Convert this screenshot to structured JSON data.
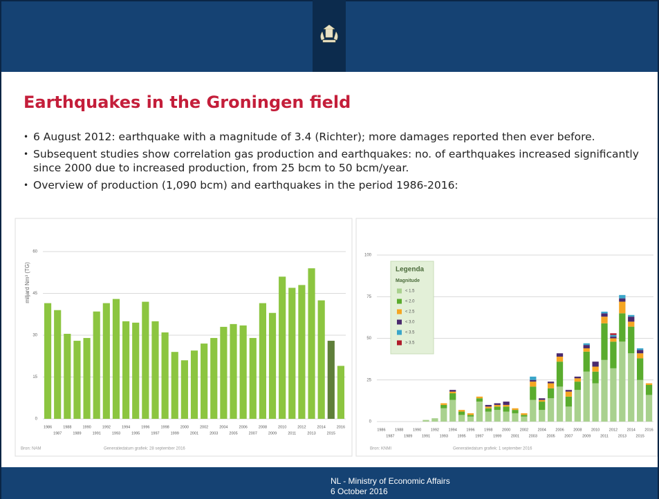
{
  "header": {
    "title": "Earthquakes in the Groningen field"
  },
  "bullets": [
    "6 August 2012: earthquake with a magnitude of 3.4 (Richter); more damages reported then ever before.",
    "Subsequent studies show correlation gas production and earthquakes: no. of earthquakes increased significantly since 2000 due to increased production, from 25 bcm to 50 bcm/year.",
    "Overview of production (1,090 bcm) and earthquakes in the period 1986-2016:"
  ],
  "charts": [
    {
      "type": "bar",
      "ylabel": "miljard Nm³ (TG)",
      "source": "Bron: NAM",
      "generated": "Generatiedatum grafiek: 28 september 2016",
      "categories": [
        "1986",
        "1987",
        "1988",
        "1989",
        "1990",
        "1991",
        "1992",
        "1993",
        "1994",
        "1995",
        "1996",
        "1997",
        "1998",
        "1999",
        "2000",
        "2001",
        "2002",
        "2003",
        "2004",
        "2005",
        "2006",
        "2007",
        "2008",
        "2009",
        "2010",
        "2011",
        "2012",
        "2013",
        "2014",
        "2015",
        "2016"
      ],
      "values": [
        41.5,
        39,
        30.5,
        28,
        29,
        38.5,
        41.5,
        43,
        35,
        34.5,
        42,
        35,
        31,
        24,
        21,
        24.5,
        27,
        29,
        33,
        34,
        33.5,
        29,
        41.5,
        38,
        51,
        47,
        48,
        54,
        42.5,
        28,
        19
      ],
      "colors": [
        "#8cc540",
        "#8cc540",
        "#8cc540",
        "#8cc540",
        "#8cc540",
        "#8cc540",
        "#8cc540",
        "#8cc540",
        "#8cc540",
        "#8cc540",
        "#8cc540",
        "#8cc540",
        "#8cc540",
        "#8cc540",
        "#8cc540",
        "#8cc540",
        "#8cc540",
        "#8cc540",
        "#8cc540",
        "#8cc540",
        "#8cc540",
        "#8cc540",
        "#8cc540",
        "#8cc540",
        "#8cc540",
        "#8cc540",
        "#8cc540",
        "#8cc540",
        "#8cc540",
        "#5f7f3a",
        "#8cc540"
      ],
      "ylim": [
        0,
        60
      ],
      "yticks": [
        0,
        15,
        30,
        45,
        60
      ],
      "grid": true
    },
    {
      "type": "stacked_bar",
      "source": "Bron: KNMI",
      "generated": "Generatiedatum grafiek: 1 september 2016",
      "legend_title": "Legenda",
      "legend_subtitle": "Magnitude",
      "categories": [
        "1986",
        "1987",
        "1988",
        "1989",
        "1990",
        "1991",
        "1992",
        "1993",
        "1994",
        "1995",
        "1996",
        "1997",
        "1998",
        "1999",
        "2000",
        "2001",
        "2002",
        "2003",
        "2004",
        "2005",
        "2006",
        "2007",
        "2008",
        "2009",
        "2010",
        "2011",
        "2012",
        "2013",
        "2014",
        "2015",
        "2016"
      ],
      "series": [
        {
          "name": "< 1.5",
          "color": "#a9d18e",
          "values": [
            0,
            0,
            0,
            0,
            0,
            1,
            2,
            8,
            13,
            4,
            3,
            12,
            6,
            7,
            6,
            5,
            3,
            13,
            7,
            14,
            21,
            9,
            19,
            30,
            23,
            37,
            32,
            48,
            41,
            25,
            16
          ]
        },
        {
          "name": "< 2.0",
          "color": "#5aac2e",
          "values": [
            0,
            0,
            0,
            0,
            0,
            0,
            0,
            2,
            4,
            2,
            1,
            2,
            2,
            2,
            3,
            2,
            1,
            8,
            5,
            6,
            15,
            6,
            5,
            12,
            7,
            22,
            16,
            17,
            16,
            13,
            6
          ]
        },
        {
          "name": "< 2.5",
          "color": "#f5a623",
          "values": [
            0,
            0,
            0,
            0,
            0,
            0,
            0,
            1,
            1,
            1,
            1,
            1,
            1,
            1,
            1,
            1,
            1,
            3,
            1,
            3,
            3,
            3,
            2,
            2,
            3,
            4,
            2,
            7,
            3,
            3,
            1
          ]
        },
        {
          "name": "< 3.0",
          "color": "#4b2a6e",
          "values": [
            0,
            0,
            0,
            0,
            0,
            0,
            0,
            0,
            1,
            0,
            0,
            0,
            1,
            1,
            2,
            0,
            0,
            1,
            1,
            1,
            2,
            1,
            1,
            2,
            3,
            2,
            1,
            2,
            3,
            2,
            0
          ]
        },
        {
          "name": "< 3.5",
          "color": "#3aa6c9",
          "values": [
            0,
            0,
            0,
            0,
            0,
            0,
            0,
            0,
            0,
            0,
            0,
            0,
            0,
            0,
            0,
            0,
            0,
            2,
            0,
            0,
            0,
            0,
            0,
            1,
            0,
            1,
            1,
            2,
            1,
            1,
            0
          ]
        },
        {
          "name": "> 3.5",
          "color": "#b01c2b",
          "values": [
            0,
            0,
            0,
            0,
            0,
            0,
            0,
            0,
            0,
            0,
            0,
            0,
            0,
            0,
            0,
            0,
            0,
            0,
            0,
            0,
            0,
            0,
            0,
            0,
            0,
            0,
            1,
            0,
            0,
            0,
            0
          ]
        }
      ],
      "ylim": [
        0,
        100
      ],
      "yticks": [
        0,
        25,
        50,
        75,
        100
      ],
      "grid": true
    }
  ],
  "footer": {
    "organization": "NL - Ministry of Economic Affairs",
    "date": "6 October 2016"
  }
}
